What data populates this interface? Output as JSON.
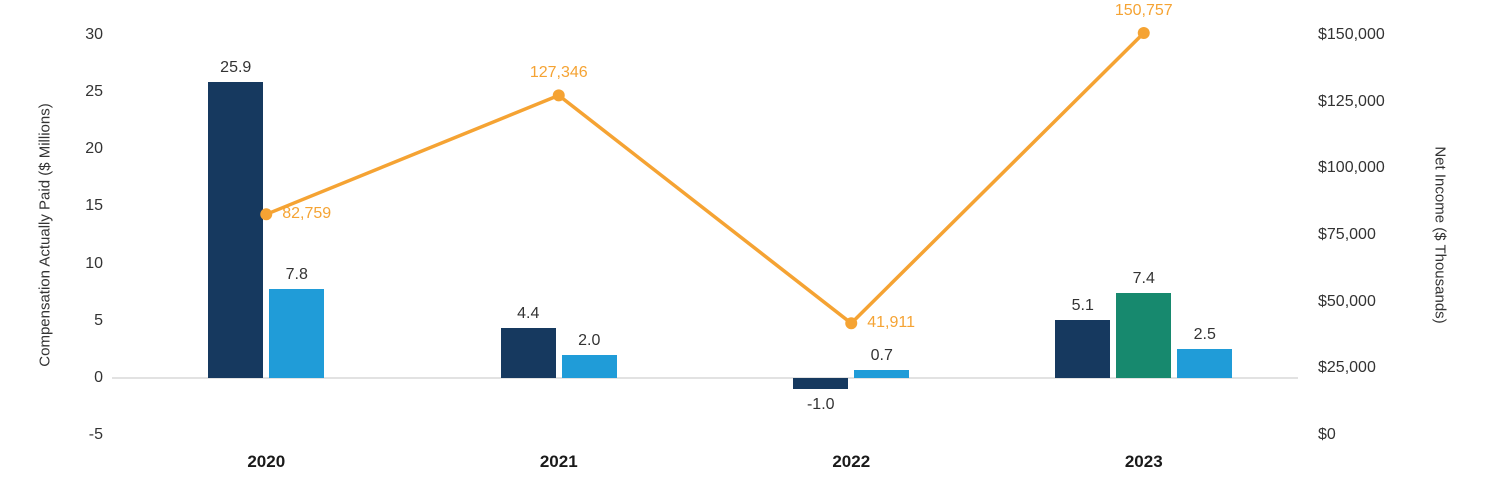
{
  "chart_data": {
    "type": "bar+line",
    "title": "",
    "categories": [
      "2020",
      "2021",
      "2022",
      "2023"
    ],
    "left_axis": {
      "title": "Compensation Actually Paid ($ Millions)",
      "min": -5,
      "max": 30,
      "ticks": [
        {
          "label": "30",
          "value": 30
        },
        {
          "label": "25",
          "value": 25
        },
        {
          "label": "20",
          "value": 20
        },
        {
          "label": "15",
          "value": 15
        },
        {
          "label": "10",
          "value": 10
        },
        {
          "label": "5",
          "value": 5
        },
        {
          "label": "0",
          "value": 0
        },
        {
          "label": "-5",
          "value": -5
        }
      ]
    },
    "right_axis": {
      "title": "Net Income ($ Thousands)",
      "min": 0,
      "max": 150000,
      "ticks": [
        {
          "label": "$150,000",
          "value": 150000
        },
        {
          "label": "$125,000",
          "value": 125000
        },
        {
          "label": "$100,000",
          "value": 100000
        },
        {
          "label": "$75,000",
          "value": 75000
        },
        {
          "label": "$50,000",
          "value": 50000
        },
        {
          "label": "$25,000",
          "value": 25000
        },
        {
          "label": "$0",
          "value": 0
        }
      ]
    },
    "bar_series": [
      {
        "name": "navy",
        "color": "#16395F",
        "values": [
          25.9,
          4.4,
          -1.0,
          5.1
        ],
        "labels": [
          "25.9",
          "4.4",
          "-1.0",
          "5.1"
        ]
      },
      {
        "name": "teal",
        "color": "#17896E",
        "values": [
          null,
          null,
          null,
          7.4
        ],
        "labels": [
          null,
          null,
          null,
          "7.4"
        ]
      },
      {
        "name": "blue",
        "color": "#209CD8",
        "values": [
          7.8,
          2.0,
          0.7,
          2.5
        ],
        "labels": [
          "7.8",
          "2.0",
          "0.7",
          "2.5"
        ]
      }
    ],
    "line_series": {
      "name": "net-income",
      "color": "#F5A333",
      "values": [
        82759,
        127346,
        41911,
        150757
      ],
      "labels": [
        "82,759",
        "127,346",
        "41,911",
        "150,757"
      ],
      "label_positions": [
        "right",
        "above",
        "right",
        "above"
      ]
    },
    "grid": {
      "zero_line_color": "#E2E2E2"
    },
    "layout_hints": {
      "grid": "off",
      "legend": "none",
      "bar_gap": "small"
    }
  }
}
